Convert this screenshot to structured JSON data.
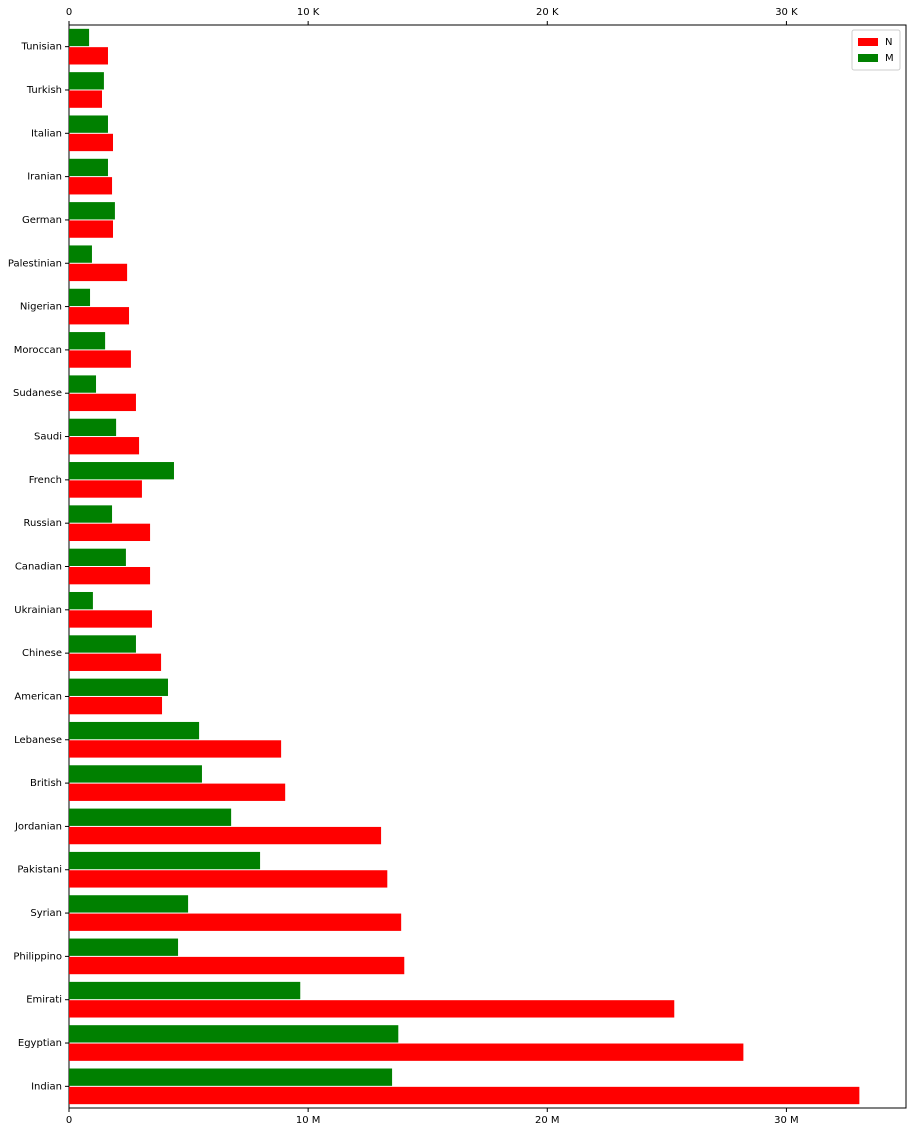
{
  "chart_data": {
    "type": "bar",
    "orientation": "horizontal",
    "categories": [
      "Tunisian",
      "Turkish",
      "Italian",
      "Iranian",
      "German",
      "Palestinian",
      "Nigerian",
      "Moroccan",
      "Sudanese",
      "Saudi",
      "French",
      "Russian",
      "Canadian",
      "Ukrainian",
      "Chinese",
      "American",
      "Lebanese",
      "British",
      "Jordanian",
      "Pakistani",
      "Syrian",
      "Philippino",
      "Emirati",
      "Egyptian",
      "Indian"
    ],
    "series": [
      {
        "name": "N",
        "color": "red",
        "axis": "x",
        "values": [
          1630000,
          1380000,
          1840000,
          1800000,
          1840000,
          2430000,
          2510000,
          2590000,
          2800000,
          2930000,
          3050000,
          3390000,
          3390000,
          3470000,
          3850000,
          3890000,
          8870000,
          9040000,
          13050000,
          13310000,
          13890000,
          14020000,
          25310000,
          28200000,
          33050000
        ]
      },
      {
        "name": "M",
        "color": "green",
        "axis": "x2",
        "values": [
          840,
          1460,
          1630,
          1630,
          1920,
          960,
          880,
          1510,
          1130,
          1970,
          4390,
          1800,
          2380,
          1000,
          2800,
          4140,
          5440,
          5560,
          6780,
          7990,
          4980,
          4560,
          9670,
          13770,
          13510
        ]
      }
    ],
    "xlim": [
      0,
      35000000
    ],
    "xticks": [
      0,
      {
        "value": 10000000,
        "label": "10 M"
      },
      {
        "value": 20000000,
        "label": "20 M"
      },
      {
        "value": 30000000,
        "label": "30 M"
      }
    ],
    "x2lim": [
      0,
      35000
    ],
    "x2ticks": [
      0,
      {
        "value": 10000,
        "label": "10 K"
      },
      {
        "value": 20000,
        "label": "20 K"
      },
      {
        "value": 30000,
        "label": "30 K"
      }
    ],
    "legend": "upper right"
  }
}
